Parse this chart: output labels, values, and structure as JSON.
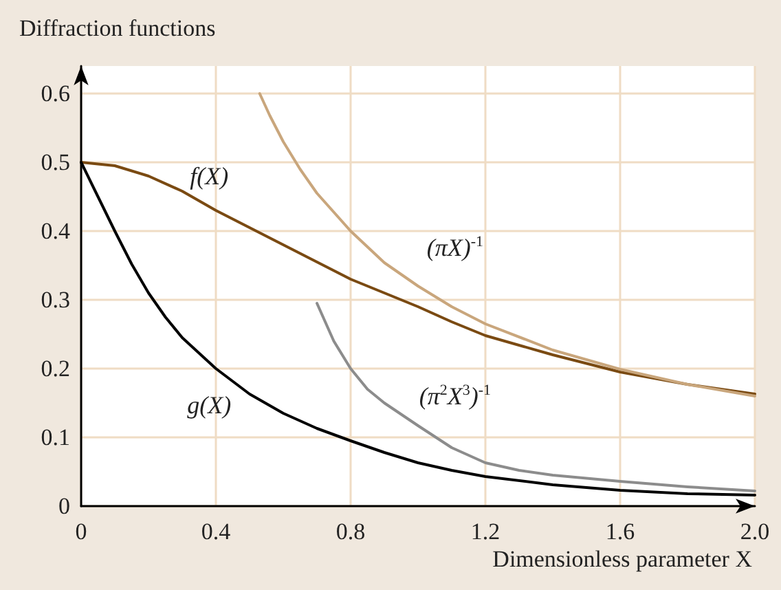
{
  "chart_data": {
    "type": "line",
    "xlabel": "Dimensionless parameter X",
    "ylabel": "Diffraction functions",
    "xlim": [
      0,
      2
    ],
    "ylim": [
      0,
      0.64
    ],
    "xticks": [
      0,
      0.4,
      0.8,
      1.2,
      1.6,
      {
        "value": 2,
        "label": "2.0"
      }
    ],
    "yticks": [
      0,
      0.1,
      0.2,
      0.3,
      0.4,
      0.5,
      0.6
    ],
    "grid": true,
    "marker": "none",
    "line_style": "solid",
    "series": [
      {
        "color": "#7a4a12",
        "x": [
          0,
          0.1,
          0.2,
          0.3,
          0.4,
          0.5,
          0.6,
          0.7,
          0.8,
          0.9,
          1.0,
          1.1,
          1.2,
          1.4,
          1.6,
          1.8,
          2.0
        ],
        "values": [
          0.5,
          0.495,
          0.48,
          0.458,
          0.43,
          0.405,
          0.38,
          0.355,
          0.33,
          0.31,
          0.29,
          0.268,
          0.248,
          0.22,
          0.195,
          0.177,
          0.163
        ]
      },
      {
        "color": "#000000",
        "x": [
          0,
          0.05,
          0.1,
          0.15,
          0.2,
          0.25,
          0.3,
          0.4,
          0.5,
          0.6,
          0.7,
          0.8,
          0.9,
          1.0,
          1.1,
          1.2,
          1.4,
          1.6,
          1.8,
          2.0
        ],
        "values": [
          0.5,
          0.45,
          0.4,
          0.352,
          0.31,
          0.275,
          0.245,
          0.2,
          0.163,
          0.135,
          0.113,
          0.095,
          0.078,
          0.063,
          0.052,
          0.043,
          0.031,
          0.023,
          0.018,
          0.016
        ]
      },
      {
        "color": "#c9a67c",
        "x": [
          0.53,
          0.56,
          0.6,
          0.65,
          0.7,
          0.8,
          0.9,
          1.0,
          1.1,
          1.2,
          1.4,
          1.6,
          1.8,
          2.0
        ],
        "values": [
          0.6,
          0.568,
          0.53,
          0.49,
          0.455,
          0.4,
          0.354,
          0.32,
          0.29,
          0.265,
          0.227,
          0.199,
          0.177,
          0.16
        ]
      },
      {
        "color": "#8c8c8c",
        "x": [
          0.7,
          0.75,
          0.8,
          0.85,
          0.9,
          1.0,
          1.1,
          1.2,
          1.3,
          1.4,
          1.6,
          1.8,
          2.0
        ],
        "values": [
          0.295,
          0.24,
          0.2,
          0.17,
          0.15,
          0.117,
          0.085,
          0.063,
          0.052,
          0.045,
          0.036,
          0.028,
          0.022
        ]
      }
    ],
    "annotations": [
      "f(X)",
      "g(X)",
      "(πX)$^{-1}$",
      "(π$^{2}$X$^{3}$)$^{-1}$"
    ]
  }
}
